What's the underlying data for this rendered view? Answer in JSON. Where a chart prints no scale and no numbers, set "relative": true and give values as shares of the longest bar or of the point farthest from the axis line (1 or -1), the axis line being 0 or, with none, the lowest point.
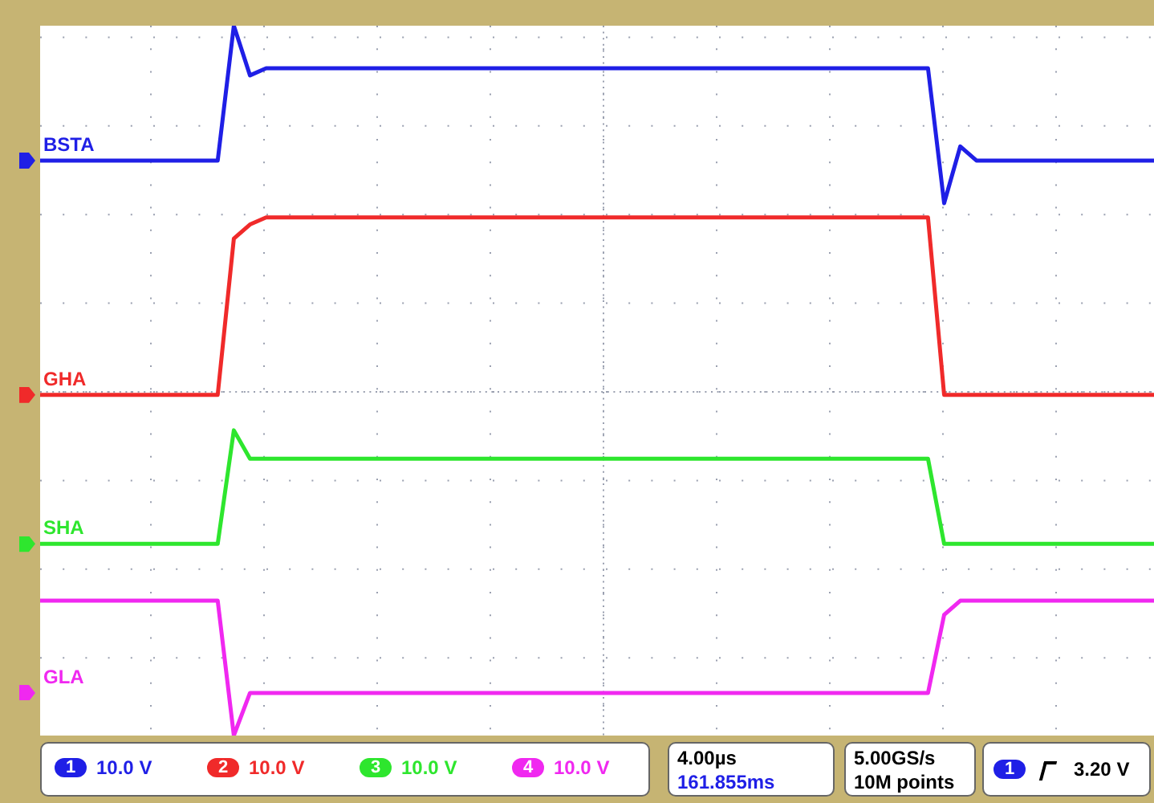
{
  "chart_data": {
    "type": "line",
    "relative": true,
    "grid": true,
    "legend": "left",
    "marker": "none",
    "line_style": "solid",
    "categories": [
      null,
      null,
      null,
      null,
      null,
      null,
      null,
      null,
      null,
      null,
      null,
      null,
      null,
      null,
      null,
      null,
      null,
      null,
      null,
      null,
      null,
      null,
      null,
      null,
      null,
      null,
      null,
      null,
      null,
      null,
      null,
      null,
      null,
      null,
      null,
      null,
      null,
      null,
      null,
      null,
      null,
      null,
      null,
      null,
      null,
      null,
      null,
      null,
      null,
      null,
      null,
      null,
      null,
      null,
      null,
      null,
      null,
      null,
      null,
      null,
      null,
      null,
      null,
      null,
      null,
      null,
      null,
      null,
      null,
      null
    ],
    "series": [
      {
        "name": "BSTA",
        "color": "#1f1fe6",
        "values": [
          0.81,
          0.81,
          0.81,
          0.81,
          0.81,
          0.81,
          0.81,
          0.81,
          0.81,
          0.81,
          0.81,
          0.81,
          1.0,
          0.93,
          0.94,
          0.94,
          0.94,
          0.94,
          0.94,
          0.94,
          0.94,
          0.94,
          0.94,
          0.94,
          0.94,
          0.94,
          0.94,
          0.94,
          0.94,
          0.94,
          0.94,
          0.94,
          0.94,
          0.94,
          0.94,
          0.94,
          0.94,
          0.94,
          0.94,
          0.94,
          0.94,
          0.94,
          0.94,
          0.94,
          0.94,
          0.94,
          0.94,
          0.94,
          0.94,
          0.94,
          0.94,
          0.94,
          0.94,
          0.94,
          0.94,
          0.94,
          0.75,
          0.83,
          0.81,
          0.81,
          0.81,
          0.81,
          0.81,
          0.81,
          0.81,
          0.81,
          0.81,
          0.81,
          0.81,
          0.81
        ]
      },
      {
        "name": "GHA",
        "color": "#f02a2a",
        "values": [
          0.48,
          0.48,
          0.48,
          0.48,
          0.48,
          0.48,
          0.48,
          0.48,
          0.48,
          0.48,
          0.48,
          0.48,
          0.7,
          0.72,
          0.73,
          0.73,
          0.73,
          0.73,
          0.73,
          0.73,
          0.73,
          0.73,
          0.73,
          0.73,
          0.73,
          0.73,
          0.73,
          0.73,
          0.73,
          0.73,
          0.73,
          0.73,
          0.73,
          0.73,
          0.73,
          0.73,
          0.73,
          0.73,
          0.73,
          0.73,
          0.73,
          0.73,
          0.73,
          0.73,
          0.73,
          0.73,
          0.73,
          0.73,
          0.73,
          0.73,
          0.73,
          0.73,
          0.73,
          0.73,
          0.73,
          0.73,
          0.48,
          0.48,
          0.48,
          0.48,
          0.48,
          0.48,
          0.48,
          0.48,
          0.48,
          0.48,
          0.48,
          0.48,
          0.48,
          0.48
        ]
      },
      {
        "name": "SHA",
        "color": "#2ee62e",
        "values": [
          0.27,
          0.27,
          0.27,
          0.27,
          0.27,
          0.27,
          0.27,
          0.27,
          0.27,
          0.27,
          0.27,
          0.27,
          0.43,
          0.39,
          0.39,
          0.39,
          0.39,
          0.39,
          0.39,
          0.39,
          0.39,
          0.39,
          0.39,
          0.39,
          0.39,
          0.39,
          0.39,
          0.39,
          0.39,
          0.39,
          0.39,
          0.39,
          0.39,
          0.39,
          0.39,
          0.39,
          0.39,
          0.39,
          0.39,
          0.39,
          0.39,
          0.39,
          0.39,
          0.39,
          0.39,
          0.39,
          0.39,
          0.39,
          0.39,
          0.39,
          0.39,
          0.39,
          0.39,
          0.39,
          0.39,
          0.39,
          0.27,
          0.27,
          0.27,
          0.27,
          0.27,
          0.27,
          0.27,
          0.27,
          0.27,
          0.27,
          0.27,
          0.27,
          0.27,
          0.27
        ]
      },
      {
        "name": "GLA",
        "color": "#f028f0",
        "values": [
          0.19,
          0.19,
          0.19,
          0.19,
          0.19,
          0.19,
          0.19,
          0.19,
          0.19,
          0.19,
          0.19,
          0.19,
          0.0,
          0.06,
          0.06,
          0.06,
          0.06,
          0.06,
          0.06,
          0.06,
          0.06,
          0.06,
          0.06,
          0.06,
          0.06,
          0.06,
          0.06,
          0.06,
          0.06,
          0.06,
          0.06,
          0.06,
          0.06,
          0.06,
          0.06,
          0.06,
          0.06,
          0.06,
          0.06,
          0.06,
          0.06,
          0.06,
          0.06,
          0.06,
          0.06,
          0.06,
          0.06,
          0.06,
          0.06,
          0.06,
          0.06,
          0.06,
          0.06,
          0.06,
          0.06,
          0.06,
          0.17,
          0.19,
          0.19,
          0.19,
          0.19,
          0.19,
          0.19,
          0.19,
          0.19,
          0.19,
          0.19,
          0.19,
          0.19,
          0.19
        ]
      }
    ],
    "annotations": [
      "1",
      "10.0 V",
      "2",
      "10.0 V",
      "3",
      "10.0 V",
      "4",
      "10.0 V",
      "4.00µs",
      "161.855ms",
      "5.00GS/s",
      "10M points",
      "1",
      "3.20 V"
    ]
  }
}
